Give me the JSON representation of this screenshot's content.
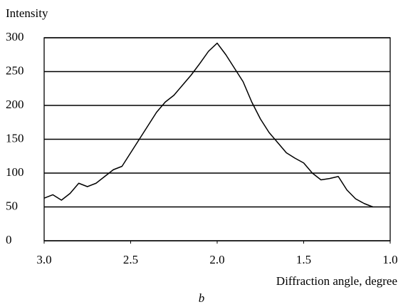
{
  "chart_data": {
    "type": "line",
    "y_label": "Intensity",
    "x_label": "Diffraction angle, degree",
    "caption": "b",
    "x": [
      3.0,
      2.95,
      2.9,
      2.85,
      2.8,
      2.75,
      2.7,
      2.65,
      2.6,
      2.55,
      2.5,
      2.45,
      2.4,
      2.35,
      2.3,
      2.25,
      2.2,
      2.15,
      2.1,
      2.05,
      2.0,
      1.95,
      1.9,
      1.85,
      1.8,
      1.75,
      1.7,
      1.65,
      1.6,
      1.55,
      1.5,
      1.45,
      1.4,
      1.35,
      1.3,
      1.25,
      1.2,
      1.15,
      1.1
    ],
    "series": [
      {
        "name": "Intensity",
        "color": "#000000",
        "values": [
          63,
          68,
          60,
          70,
          85,
          80,
          85,
          95,
          105,
          110,
          130,
          150,
          170,
          190,
          205,
          215,
          230,
          245,
          262,
          280,
          292,
          275,
          255,
          235,
          205,
          180,
          160,
          145,
          130,
          122,
          115,
          100,
          90,
          92,
          95,
          75,
          62,
          55,
          50
        ]
      }
    ],
    "xlim": [
      3.0,
      1.0
    ],
    "xticks": [
      {
        "value": 3.0,
        "label": "3.0"
      },
      {
        "value": 2.5,
        "label": "2.5"
      },
      {
        "value": 2.0,
        "label": "2.0"
      },
      {
        "value": 1.5,
        "label": "1.5"
      },
      {
        "value": 1.0,
        "label": "1.0"
      }
    ],
    "ylim": [
      0,
      300
    ],
    "yticks": [
      0,
      50,
      100,
      150,
      200,
      250,
      300
    ],
    "grid": true
  }
}
